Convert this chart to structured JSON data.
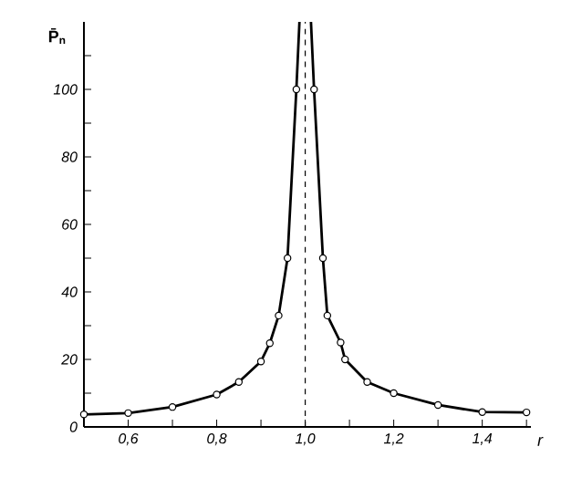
{
  "chart_data": {
    "type": "line",
    "xlabel": "r",
    "ylabel": "P̄$_{n}$",
    "xlim": [
      0.5,
      1.51
    ],
    "ylim": [
      0,
      120
    ],
    "xticks": [
      {
        "value": 0.5,
        "label": null
      },
      {
        "value": 0.6,
        "label": "0,6"
      },
      {
        "value": 0.7,
        "label": null
      },
      {
        "value": 0.8,
        "label": "0,8"
      },
      {
        "value": 0.9,
        "label": null
      },
      {
        "value": 1.0,
        "label": "1,0"
      },
      {
        "value": 1.1,
        "label": null
      },
      {
        "value": 1.2,
        "label": "1,2"
      },
      {
        "value": 1.3,
        "label": null
      },
      {
        "value": 1.4,
        "label": "1,4"
      },
      {
        "value": 1.5,
        "label": null
      }
    ],
    "yticks": [
      0,
      {
        "value": 10,
        "label": null
      },
      20,
      {
        "value": 30,
        "label": null
      },
      40,
      {
        "value": 50,
        "label": null
      },
      60,
      {
        "value": 70,
        "label": null
      },
      80,
      {
        "value": 90,
        "label": null
      },
      100,
      {
        "value": 110,
        "label": null
      }
    ],
    "grid": false,
    "ref_lines": [
      {
        "axis": "x",
        "value": 1.0,
        "line_style": "dashed",
        "color": "#000000"
      }
    ],
    "series": [
      {
        "color": "#000000",
        "marker": "none",
        "line_style": "solid",
        "x": [
          0.5,
          0.6,
          0.7,
          0.8,
          0.85,
          0.9,
          0.92,
          0.94,
          0.96,
          0.98,
          0.987
        ],
        "values": [
          3.7,
          4.1,
          5.9,
          9.6,
          13.3,
          19.4,
          24.8,
          33,
          50,
          100,
          120
        ]
      },
      {
        "color": "#000000",
        "marker": "none",
        "line_style": "solid",
        "x": [
          1.013,
          1.02,
          1.04,
          1.05,
          1.08,
          1.09,
          1.14,
          1.2,
          1.3,
          1.4,
          1.5
        ],
        "values": [
          120,
          100,
          50,
          33,
          25,
          20,
          13.3,
          10,
          6.5,
          4.4,
          4.3
        ]
      },
      {
        "type": "scatter",
        "color": "#000000",
        "marker": "circle",
        "x": [
          0.5,
          0.6,
          0.7,
          0.8,
          0.85,
          0.9,
          0.92,
          0.94,
          0.96,
          0.98,
          1.02,
          1.04,
          1.05,
          1.08,
          1.09,
          1.14,
          1.2,
          1.3,
          1.4,
          1.5
        ],
        "values": [
          3.7,
          4.1,
          5.9,
          9.6,
          13.3,
          19.4,
          24.8,
          33,
          50,
          100,
          100,
          50,
          33,
          25,
          20,
          13.3,
          10,
          6.5,
          4.4,
          4.3
        ]
      }
    ]
  }
}
